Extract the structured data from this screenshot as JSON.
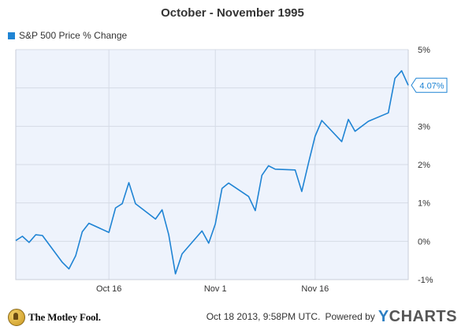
{
  "title": "October - November 1995",
  "legend": {
    "label": "S&P 500 Price % Change",
    "color": "#1f84d4"
  },
  "footer": {
    "brand": "The Motley Fool.",
    "timestamp": "Oct 18 2013, 9:58PM UTC.",
    "powered_by": "Powered by",
    "ycharts_y": "Y",
    "ycharts_rest": "CHARTS"
  },
  "colors": {
    "line": "#1f84d4",
    "plot_background": "#eef3fc",
    "grid": "#d5dbe6",
    "axis_text": "#333333"
  },
  "chart_data": {
    "type": "line",
    "title": "October - November 1995",
    "series": [
      {
        "name": "S&P 500 Price % Change",
        "x": [
          "1995-10-02",
          "1995-10-03",
          "1995-10-04",
          "1995-10-05",
          "1995-10-06",
          "1995-10-09",
          "1995-10-10",
          "1995-10-11",
          "1995-10-12",
          "1995-10-13",
          "1995-10-16",
          "1995-10-17",
          "1995-10-18",
          "1995-10-19",
          "1995-10-20",
          "1995-10-23",
          "1995-10-24",
          "1995-10-25",
          "1995-10-26",
          "1995-10-27",
          "1995-10-30",
          "1995-10-31",
          "1995-11-01",
          "1995-11-02",
          "1995-11-03",
          "1995-11-06",
          "1995-11-07",
          "1995-11-08",
          "1995-11-09",
          "1995-11-10",
          "1995-11-13",
          "1995-11-14",
          "1995-11-15",
          "1995-11-16",
          "1995-11-17",
          "1995-11-20",
          "1995-11-21",
          "1995-11-22",
          "1995-11-24",
          "1995-11-27",
          "1995-11-28",
          "1995-11-29",
          "1995-11-30"
        ],
        "values": [
          0.02,
          0.13,
          -0.03,
          0.17,
          0.15,
          -0.55,
          -0.72,
          -0.38,
          0.25,
          0.47,
          0.23,
          0.87,
          0.98,
          1.53,
          0.98,
          0.58,
          0.82,
          0.17,
          -0.85,
          -0.33,
          0.27,
          -0.05,
          0.45,
          1.38,
          1.52,
          1.17,
          0.8,
          1.72,
          1.97,
          1.88,
          1.86,
          1.3,
          2.04,
          2.74,
          3.15,
          2.6,
          3.18,
          2.87,
          3.13,
          3.35,
          4.25,
          4.45,
          4.07
        ]
      }
    ],
    "x_ticks": [
      {
        "date": "1995-10-16",
        "label": "Oct 16"
      },
      {
        "date": "1995-11-01",
        "label": "Nov 1"
      },
      {
        "date": "1995-11-16",
        "label": "Nov 16"
      }
    ],
    "y_ticks": [
      -1,
      0,
      1,
      2,
      3,
      4,
      5
    ],
    "y_tick_labels": [
      "-1%",
      "0%",
      "1%",
      "2%",
      "3%",
      "4%",
      "5%"
    ],
    "ylim": [
      -1,
      5
    ],
    "y_axis_side": "right",
    "grid": true,
    "legend_position": "top-left",
    "last_value_label": "4.07%"
  }
}
